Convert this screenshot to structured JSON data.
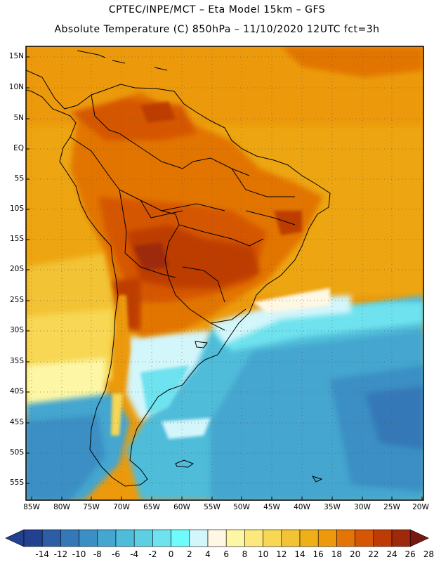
{
  "header": {
    "line1": "CPTEC/INPE/MCT –   Eta Model 15km – GFS",
    "line2": "Absolute Temperature (C) 850hPa – 11/10/2020 12UTC fct=3h"
  },
  "map": {
    "lat_labels": [
      "15N",
      "10N",
      "5N",
      "EQ",
      "5S",
      "10S",
      "15S",
      "20S",
      "25S",
      "30S",
      "35S",
      "40S",
      "45S",
      "50S",
      "55S"
    ],
    "lon_labels": [
      "85W",
      "80W",
      "75W",
      "70W",
      "65W",
      "60W",
      "55W",
      "50W",
      "45W",
      "40W",
      "35W",
      "30W",
      "25W",
      "20W"
    ]
  },
  "colorbar": {
    "labels": [
      "-14",
      "-12",
      "-10",
      "-8",
      "-6",
      "-4",
      "-2",
      "0",
      "2",
      "4",
      "6",
      "8",
      "10",
      "12",
      "14",
      "16",
      "18",
      "20",
      "22",
      "24",
      "26",
      "28"
    ],
    "colors": [
      "#23418f",
      "#2d5ea5",
      "#3478b8",
      "#3b8fc4",
      "#45a6cf",
      "#4fbcd9",
      "#5ccfe3",
      "#6ee2ee",
      "#6ffbfb",
      "#d3f6fb",
      "#fef7e3",
      "#fdf7a5",
      "#fce87d",
      "#f7d753",
      "#f2c335",
      "#eeb016",
      "#ec9a0b",
      "#e27505",
      "#d55604",
      "#bd3c06",
      "#9e2a0b",
      "#78180f"
    ]
  },
  "legend_values": {
    "min": -14,
    "max": 28,
    "step": 2,
    "units": "C"
  }
}
